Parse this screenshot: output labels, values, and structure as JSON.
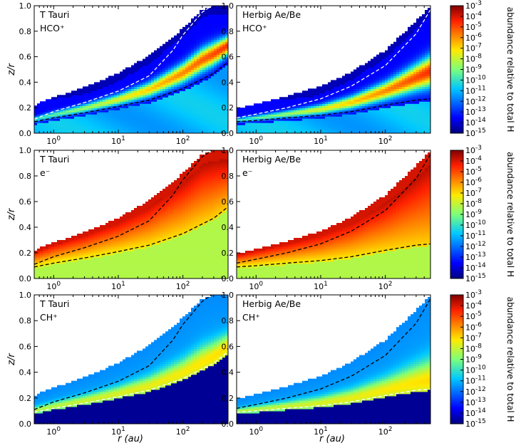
{
  "figure": {
    "xlabel": "r (au)",
    "ylabel": "z/r",
    "colorbar_label": "abundance relative to total H"
  },
  "chart_data": {
    "type": "heatmap",
    "description_of_axes": {
      "x": {
        "label": "r (au)",
        "scale": "log",
        "range": [
          0.5,
          500
        ],
        "tick_labels": [
          "10^0",
          "10^1",
          "10^2"
        ],
        "tick_values": [
          1,
          10,
          100
        ]
      },
      "y": {
        "label": "z/r",
        "scale": "linear",
        "range": [
          0.0,
          1.0
        ],
        "tick_labels": [
          "0.0",
          "0.2",
          "0.4",
          "0.6",
          "0.8",
          "1.0"
        ],
        "tick_values": [
          0.0,
          0.2,
          0.4,
          0.6,
          0.8,
          1.0
        ]
      }
    },
    "colorbar": {
      "label": "abundance relative to total H",
      "scale": "log",
      "range_exponent": [
        -15,
        -3
      ],
      "tick_labels": [
        "10^-3",
        "10^-4",
        "10^-5",
        "10^-6",
        "10^-7",
        "10^-8",
        "10^-9",
        "10^-10",
        "10^-11",
        "10^-12",
        "10^-13",
        "10^-14",
        "10^-15"
      ]
    },
    "panels": [
      {
        "source": "T Tauri",
        "species": "HCO⁺",
        "kind": "hco",
        "lower_contour_color": "black",
        "upper_contour_color": "white",
        "disk_top_max": 1.0
      },
      {
        "source": "Herbig Ae/Be",
        "species": "HCO⁺",
        "kind": "hco",
        "lower_contour_color": "black",
        "upper_contour_color": "white",
        "disk_top_max": 1.0
      },
      {
        "source": "T Tauri",
        "species": "e⁻",
        "kind": "e",
        "lower_contour_color": "black",
        "upper_contour_color": "black",
        "disk_top_max": 1.0
      },
      {
        "source": "Herbig Ae/Be",
        "species": "e⁻",
        "kind": "e",
        "lower_contour_color": "black",
        "upper_contour_color": "black",
        "disk_top_max": 1.0
      },
      {
        "source": "T Tauri",
        "species": "CH⁺",
        "kind": "ch",
        "lower_contour_color": "white",
        "upper_contour_color": "black",
        "disk_top_max": 1.0
      },
      {
        "source": "Herbig Ae/Be",
        "species": "CH⁺",
        "kind": "ch",
        "lower_contour_color": "white",
        "upper_contour_color": "black",
        "disk_top_max": 1.0
      }
    ],
    "contours": {
      "T Tauri": {
        "lower": {
          "r": [
            0.5,
            1,
            3,
            10,
            30,
            100,
            300,
            500
          ],
          "z_over_r": [
            0.09,
            0.12,
            0.16,
            0.21,
            0.26,
            0.35,
            0.47,
            0.56
          ]
        },
        "upper": {
          "r": [
            0.5,
            1,
            3,
            10,
            30,
            70,
            100,
            200,
            280
          ],
          "z_over_r": [
            0.11,
            0.17,
            0.24,
            0.33,
            0.45,
            0.65,
            0.77,
            0.95,
            1.0
          ]
        }
      },
      "Herbig Ae/Be": {
        "lower": {
          "r": [
            0.5,
            1,
            3,
            10,
            30,
            100,
            300,
            500
          ],
          "z_over_r": [
            0.09,
            0.1,
            0.12,
            0.14,
            0.17,
            0.22,
            0.26,
            0.27
          ]
        },
        "upper": {
          "r": [
            0.5,
            1,
            3,
            10,
            30,
            100,
            300,
            500
          ],
          "z_over_r": [
            0.12,
            0.15,
            0.2,
            0.27,
            0.37,
            0.53,
            0.78,
            0.97
          ]
        }
      }
    },
    "disk_surface": {
      "T Tauri": {
        "r": [
          0.5,
          1,
          3,
          10,
          30,
          100,
          200,
          300
        ],
        "z_over_r": [
          0.22,
          0.28,
          0.36,
          0.47,
          0.61,
          0.82,
          0.97,
          1.0
        ]
      },
      "Herbig Ae/Be": {
        "r": [
          0.5,
          1,
          3,
          10,
          30,
          100,
          300,
          500
        ],
        "z_over_r": [
          0.19,
          0.23,
          0.29,
          0.37,
          0.48,
          0.65,
          0.88,
          1.0
        ]
      }
    }
  }
}
